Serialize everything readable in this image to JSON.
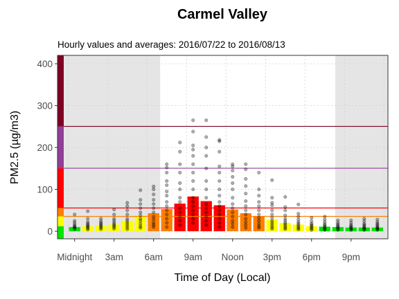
{
  "chart_data": {
    "type": "bar",
    "title": "Carmel Valley",
    "subtitle": "Hourly values and averages: 2016/07/22 to 2016/08/13",
    "xlabel": "Time of Day (Local)",
    "ylabel": "PM2.5 (µg/m3)",
    "ylim": [
      -18,
      420
    ],
    "xlim": [
      -1.3,
      23.8
    ],
    "yticks": [
      0,
      100,
      200,
      300,
      400
    ],
    "xticks": [
      {
        "hour": 0,
        "label": "Midnight"
      },
      {
        "hour": 3,
        "label": "3am"
      },
      {
        "hour": 6,
        "label": "6am"
      },
      {
        "hour": 9,
        "label": "9am"
      },
      {
        "hour": 12,
        "label": "Noon"
      },
      {
        "hour": 15,
        "label": "3pm"
      },
      {
        "hour": 18,
        "label": "6pm"
      },
      {
        "hour": 21,
        "label": "9pm"
      }
    ],
    "night_shading": [
      [
        -1.3,
        6.5
      ],
      [
        19.8,
        23.8
      ]
    ],
    "categories": [
      0,
      1,
      2,
      3,
      4,
      5,
      6,
      7,
      8,
      9,
      10,
      11,
      12,
      13,
      14,
      15,
      16,
      17,
      18,
      19,
      20,
      21,
      22,
      23
    ],
    "values": [
      10,
      12,
      14,
      16,
      25,
      35,
      43,
      53,
      66,
      83,
      72,
      62,
      52,
      43,
      36,
      28,
      20,
      16,
      12,
      11,
      10,
      9,
      9,
      9
    ],
    "aqi_thresholds": [
      12,
      35.5,
      55.5,
      150.5,
      250.5,
      500
    ],
    "aqi_colors": [
      "#00e400",
      "#ffff00",
      "#ff7e00",
      "#ff0000",
      "#8f3f97",
      "#7e0023"
    ],
    "threshold_lines": [
      35.5,
      55.5,
      150.5,
      250.5
    ],
    "hourly_points": [
      [
        5,
        8,
        10,
        12,
        15,
        20,
        25,
        40
      ],
      [
        4,
        7,
        10,
        12,
        15,
        18,
        22,
        30,
        48
      ],
      [
        5,
        8,
        11,
        14,
        17,
        20,
        24,
        30
      ],
      [
        6,
        10,
        13,
        16,
        20,
        25,
        30,
        40,
        52
      ],
      [
        5,
        10,
        15,
        20,
        25,
        30,
        40,
        50,
        60,
        68
      ],
      [
        8,
        12,
        18,
        25,
        30,
        38,
        45,
        55,
        65,
        75,
        98
      ],
      [
        10,
        15,
        20,
        28,
        35,
        45,
        55,
        65,
        75,
        88,
        100,
        107
      ],
      [
        10,
        20,
        30,
        40,
        50,
        60,
        70,
        85,
        95,
        110,
        120,
        140,
        152,
        160
      ],
      [
        15,
        25,
        35,
        45,
        55,
        70,
        80,
        100,
        115,
        140,
        160,
        190,
        212
      ],
      [
        20,
        30,
        40,
        50,
        60,
        70,
        80,
        100,
        120,
        140,
        160,
        180,
        195,
        205,
        238,
        265
      ],
      [
        15,
        25,
        35,
        45,
        55,
        65,
        80,
        100,
        120,
        150,
        180,
        200,
        225,
        265
      ],
      [
        10,
        20,
        30,
        40,
        50,
        60,
        70,
        85,
        100,
        120,
        140,
        155,
        190,
        215,
        218
      ],
      [
        10,
        18,
        25,
        35,
        45,
        55,
        65,
        80,
        100,
        115,
        130,
        145,
        155,
        160
      ],
      [
        8,
        15,
        22,
        30,
        40,
        50,
        60,
        72,
        90,
        108,
        125,
        148,
        160
      ],
      [
        8,
        12,
        18,
        25,
        32,
        40,
        50,
        60,
        70,
        85,
        100,
        140
      ],
      [
        6,
        10,
        15,
        20,
        25,
        32,
        40,
        50,
        62,
        68,
        80,
        122
      ],
      [
        5,
        8,
        12,
        16,
        20,
        25,
        30,
        38,
        50,
        58,
        82
      ],
      [
        4,
        7,
        10,
        14,
        18,
        22,
        28,
        35,
        42,
        64
      ],
      [
        3,
        6,
        9,
        12,
        15,
        18,
        24,
        32
      ],
      [
        3,
        5,
        8,
        11,
        14,
        17,
        22,
        28,
        35
      ],
      [
        3,
        5,
        8,
        10,
        13,
        16,
        20,
        26
      ],
      [
        3,
        5,
        7,
        10,
        12,
        15,
        20,
        26
      ],
      [
        3,
        5,
        7,
        9,
        12,
        15,
        18,
        24,
        30
      ],
      [
        3,
        5,
        7,
        9,
        12,
        15,
        18,
        22,
        28
      ]
    ]
  }
}
